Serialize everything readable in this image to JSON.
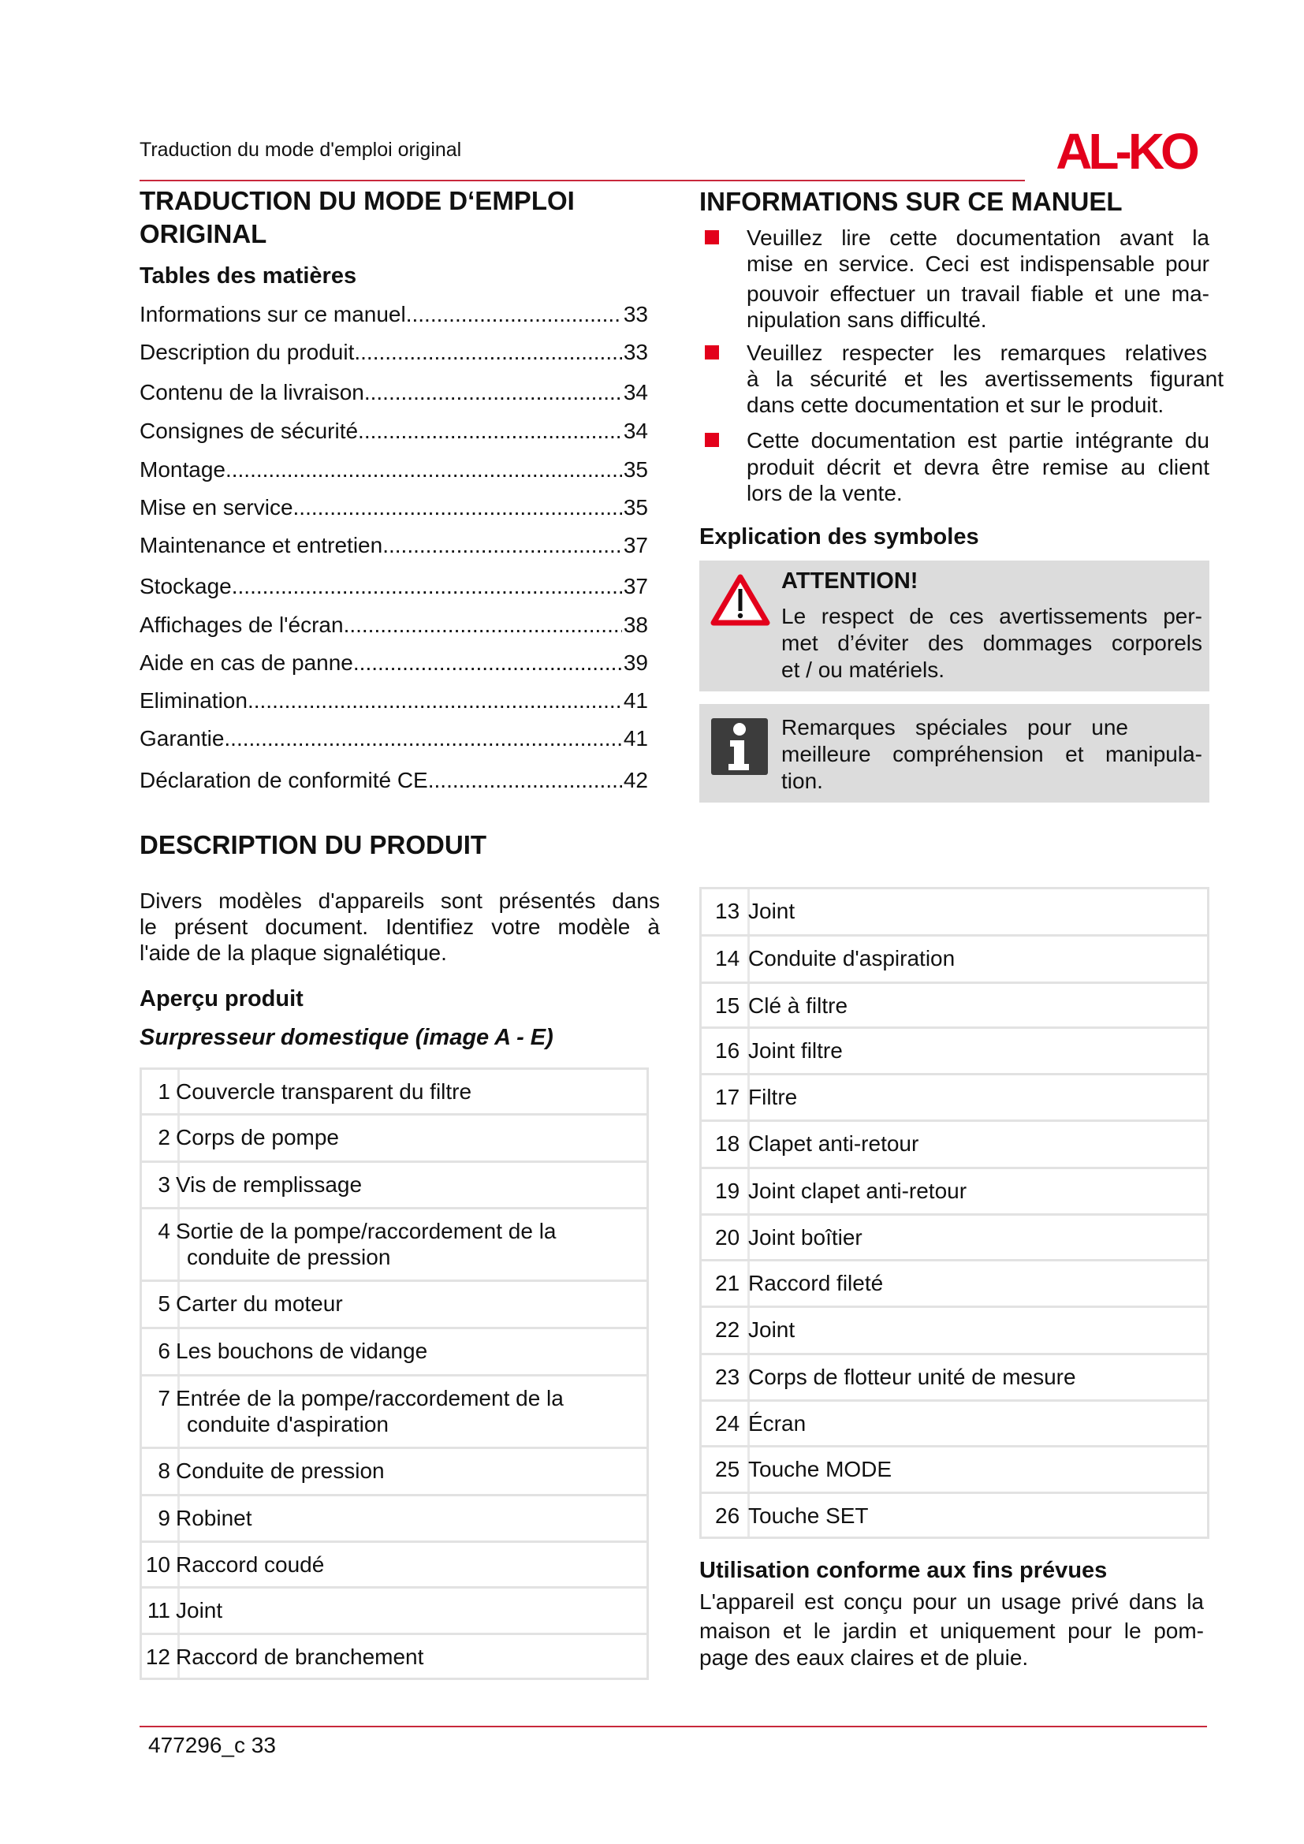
{
  "header": {
    "title": "Traduction du mode d'emploi original",
    "logo_text": "AL-KO",
    "brand_color": "#e3001b"
  },
  "left": {
    "heading_lines": [
      "TRADUCTION DU MODE D‘EMPLOI",
      "ORIGINAL"
    ],
    "toc_title": "Tables des matières",
    "toc": [
      {
        "label": "Informations sur ce manuel",
        "page": "33"
      },
      {
        "label": "Description du produit",
        "page": "33"
      },
      {
        "label": "Contenu de la livraison",
        "page": " 34"
      },
      {
        "label": "Consignes de sécurité",
        "page": " 34"
      },
      {
        "label": "Montage",
        "page": "35"
      },
      {
        "label": "Mise en service",
        "page": "35"
      },
      {
        "label": "Maintenance et entretien",
        "page": " 37"
      },
      {
        "label": "Stockage",
        "page": "37"
      },
      {
        "label": "Affichages de l'écran",
        "page": "38"
      },
      {
        "label": "Aide en cas de panne",
        "page": "39"
      },
      {
        "label": "Elimination",
        "page": "41"
      },
      {
        "label": "Garantie",
        "page": "41"
      },
      {
        "label": "Déclaration de conformité CE",
        "page": " 42"
      }
    ],
    "description_heading": "DESCRIPTION DU PRODUIT",
    "description_lines": [
      "Divers modèles d'appareils sont présentés dans",
      "le présent document. Identifiez votre modèle à",
      "l'aide de la plaque signalétique."
    ],
    "overview_title": "Aperçu produit",
    "overview_subtitle": "Surpresseur domestique (image A - E)",
    "parts": [
      {
        "num": "1",
        "lines": [
          "Couvercle transparent du filtre"
        ]
      },
      {
        "num": "2",
        "lines": [
          "Corps de pompe"
        ]
      },
      {
        "num": "3",
        "lines": [
          "Vis de remplissage"
        ]
      },
      {
        "num": "4",
        "lines": [
          "Sortie de la pompe/raccordement de la",
          "conduite de pression"
        ]
      },
      {
        "num": "5",
        "lines": [
          "Carter du moteur"
        ]
      },
      {
        "num": "6",
        "lines": [
          "Les bouchons de vidange"
        ]
      },
      {
        "num": "7",
        "lines": [
          "Entrée de la pompe/raccordement de la",
          "conduite d'aspiration"
        ]
      },
      {
        "num": "8",
        "lines": [
          "Conduite de pression"
        ]
      },
      {
        "num": "9",
        "lines": [
          "Robinet"
        ]
      },
      {
        "num": "10",
        "lines": [
          "Raccord coudé"
        ]
      },
      {
        "num": "11",
        "lines": [
          "Joint"
        ]
      },
      {
        "num": "12",
        "lines": [
          "Raccord de branchement"
        ]
      }
    ]
  },
  "right": {
    "heading": "INFORMATIONS SUR CE MANUEL",
    "bullets": [
      [
        "Veuillez lire cette documentation avant la",
        "mise en service. Ceci est indispensable pour",
        "pouvoir effectuer un travail fiable et une ma-",
        "nipulation sans difficulté."
      ],
      [
        "Veuillez respecter les remarques relatives",
        "à la sécurité et les avertissements figurant",
        "dans cette documentation et sur le produit."
      ],
      [
        "Cette documentation est partie intégrante du",
        "produit décrit et devra être remise au client",
        "lors de la vente."
      ]
    ],
    "symbols_title": "Explication des symboles",
    "attention": {
      "icon": "warning-triangle-icon",
      "title": "ATTENTION!",
      "lines": [
        "Le respect de ces avertissements per-",
        "met d’éviter des dommages corporels",
        "et / ou matériels."
      ]
    },
    "info": {
      "icon": "info-icon",
      "lines": [
        "Remarques spéciales pour une",
        "meilleure compréhension et manipula-",
        "tion."
      ]
    },
    "parts": [
      {
        "num": "13",
        "label": "Joint"
      },
      {
        "num": "14",
        "label": "Conduite d'aspiration"
      },
      {
        "num": "15",
        "label": "Clé à filtre"
      },
      {
        "num": "16",
        "label": "Joint filtre"
      },
      {
        "num": "17",
        "label": "Filtre"
      },
      {
        "num": "18",
        "label": "Clapet anti-retour"
      },
      {
        "num": "19",
        "label": "Joint clapet anti-retour"
      },
      {
        "num": "20",
        "label": "Joint boîtier"
      },
      {
        "num": "21",
        "label": "Raccord fileté"
      },
      {
        "num": "22",
        "label": "Joint"
      },
      {
        "num": "23",
        "label": "Corps de flotteur unité de mesure"
      },
      {
        "num": "24",
        "label": "Écran"
      },
      {
        "num": "25",
        "label": "Touche MODE"
      },
      {
        "num": "26",
        "label": "Touche SET"
      }
    ],
    "usage_title": "Utilisation conforme aux fins prévues",
    "usage_lines": [
      "L'appareil est conçu pour un usage privé dans la",
      "maison et le jardin et uniquement pour le pom-",
      "page des eaux claires et de pluie."
    ]
  },
  "footer": {
    "doc_ref": "477296_c 33"
  }
}
